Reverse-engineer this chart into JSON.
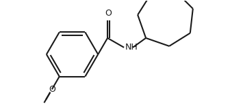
{
  "background_color": "#ffffff",
  "line_color": "#1a1a1a",
  "line_width": 1.5,
  "figsize": [
    3.36,
    1.56
  ],
  "dpi": 100,
  "font_size": 9,
  "nh_label": "NH",
  "o_label": "O",
  "methoxy_o_label": "O",
  "methoxy_label": "O"
}
